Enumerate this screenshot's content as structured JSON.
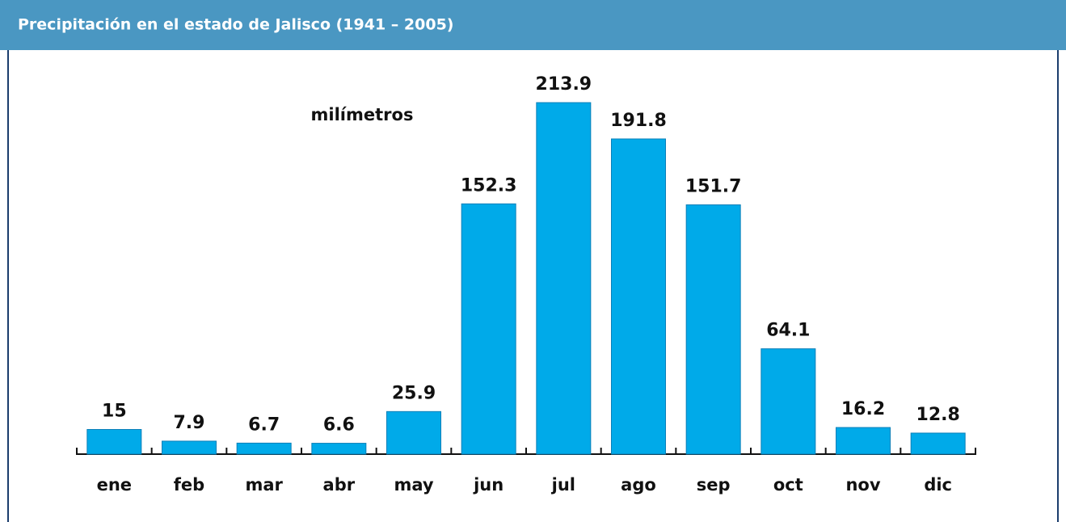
{
  "chart_data": {
    "type": "bar",
    "title": "Precipitación en el estado de Jalisco (1941 – 2005)",
    "y_label": "milímetros",
    "categories": [
      "ene",
      "feb",
      "mar",
      "abr",
      "may",
      "jun",
      "jul",
      "ago",
      "sep",
      "oct",
      "nov",
      "dic"
    ],
    "values": [
      15,
      7.9,
      6.7,
      6.6,
      25.9,
      152.3,
      213.9,
      191.8,
      151.7,
      64.1,
      16.2,
      12.8
    ],
    "color": "#00aae9"
  }
}
